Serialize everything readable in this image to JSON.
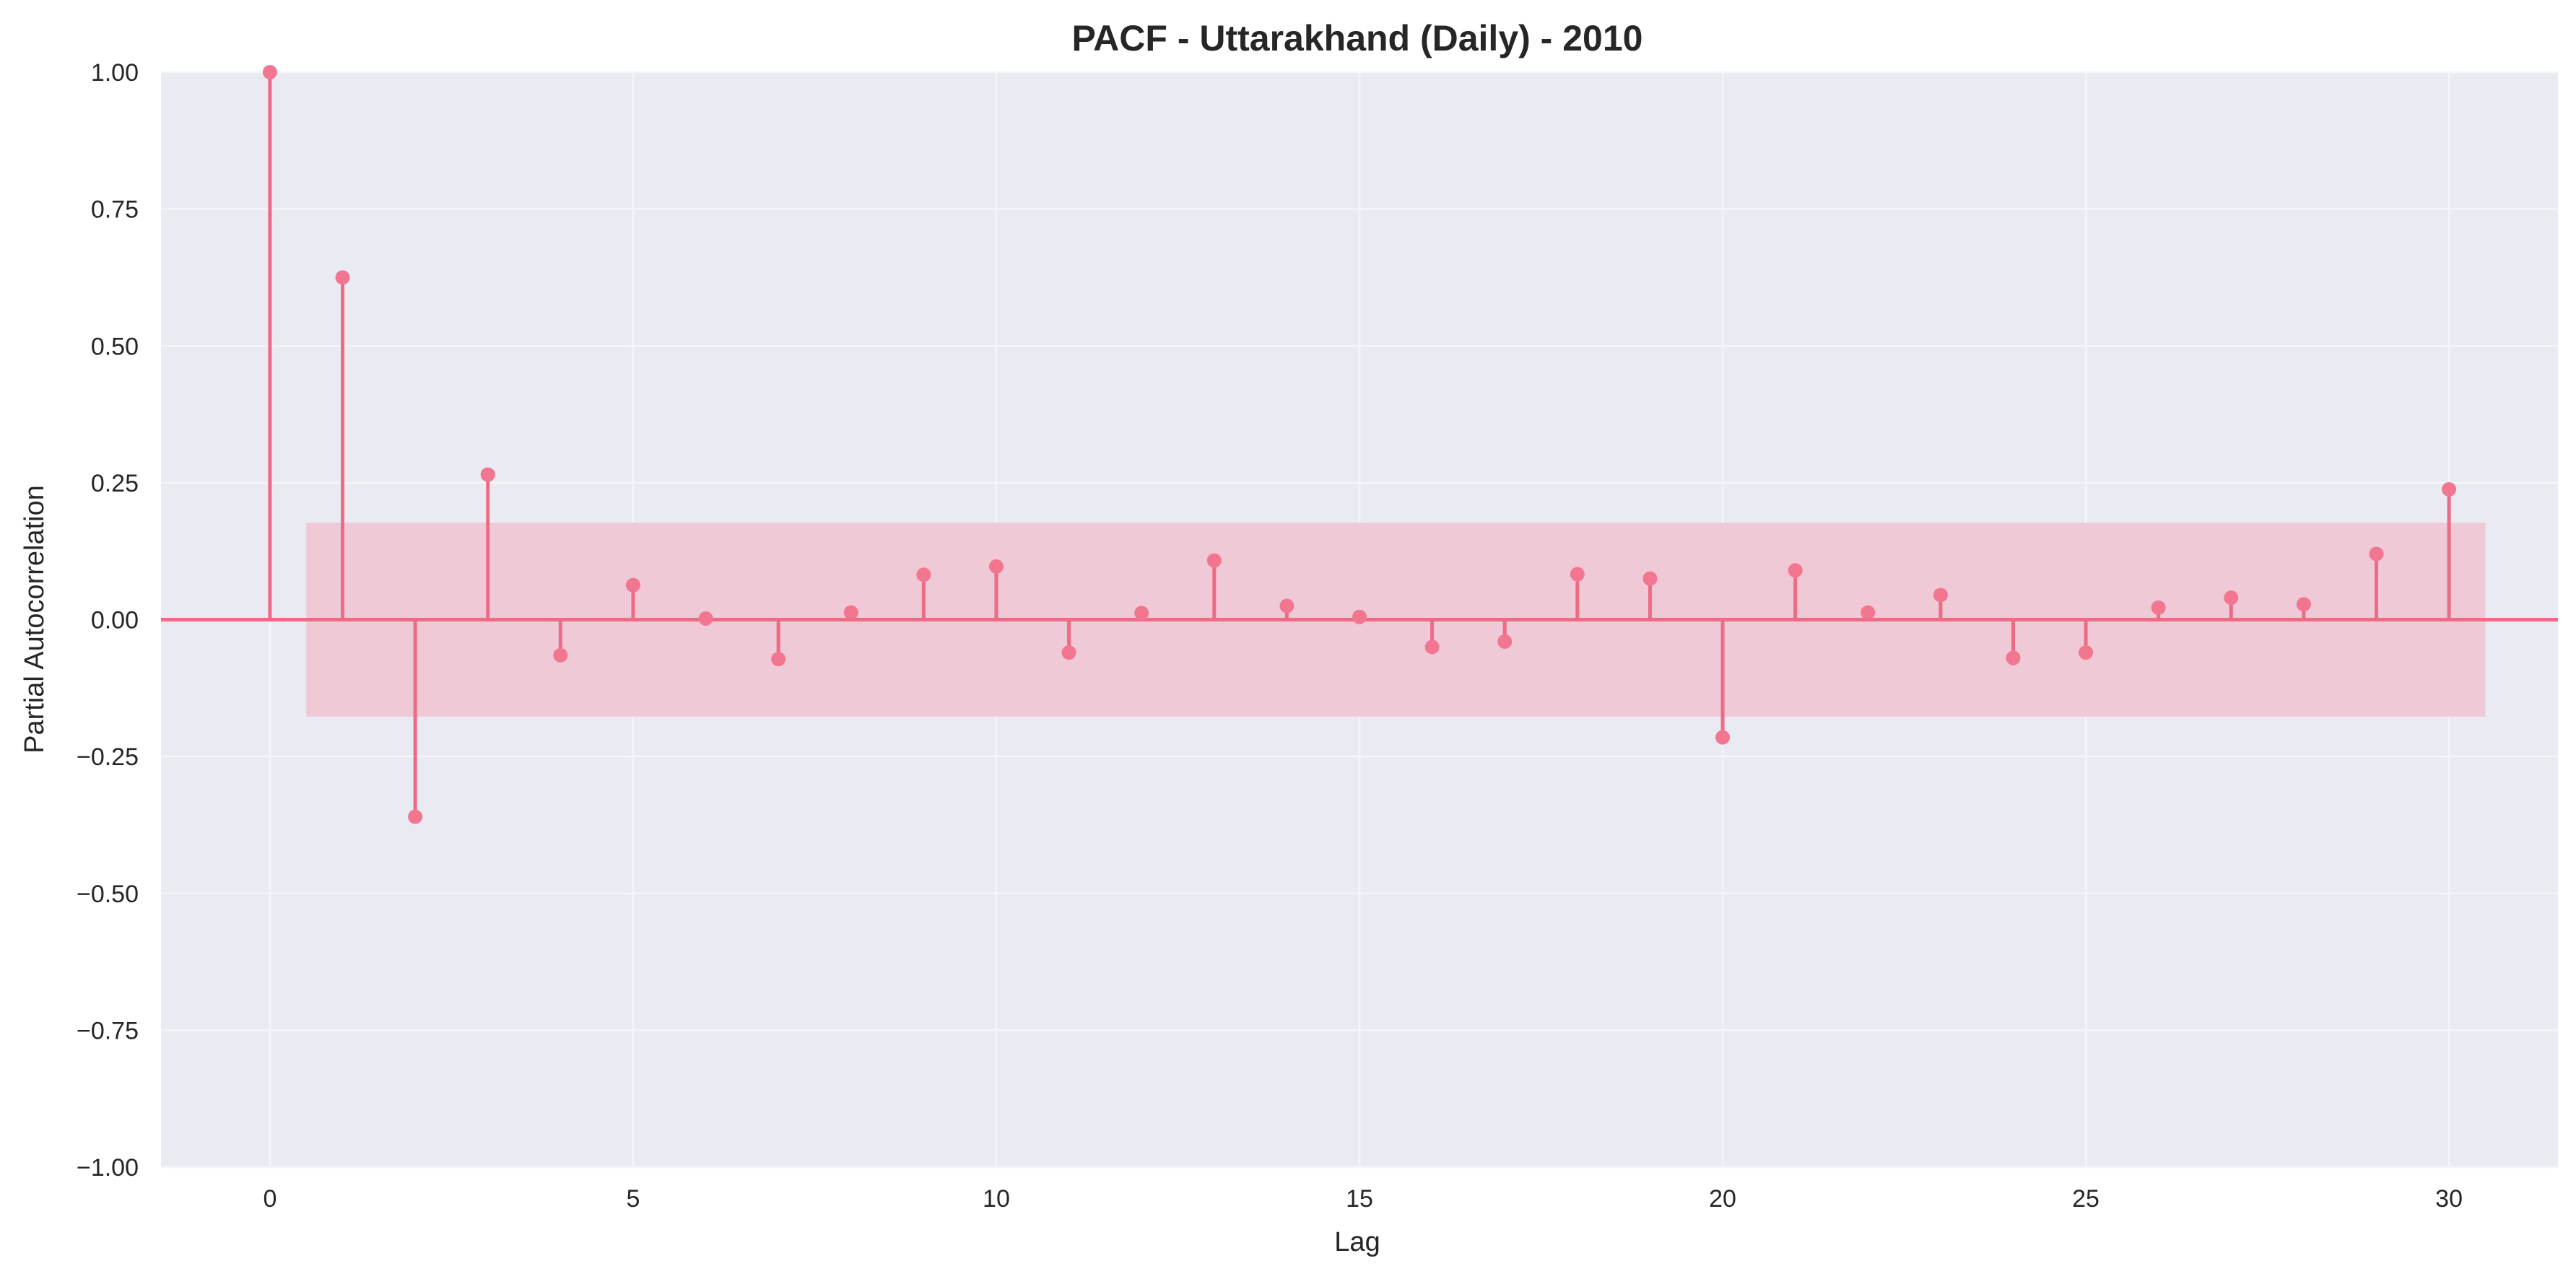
{
  "chart_data": {
    "type": "stem",
    "title": "PACF - Uttarakhand (Daily) - 2010",
    "xlabel": "Lag",
    "ylabel": "Partial Autocorrelation",
    "xlim": [
      -1.5,
      31.5
    ],
    "ylim": [
      -1.0,
      1.0
    ],
    "x_ticks": [
      0,
      5,
      10,
      15,
      20,
      25,
      30
    ],
    "y_ticks": [
      -1.0,
      -0.75,
      -0.5,
      -0.25,
      0.0,
      0.25,
      0.5,
      0.75,
      1.0
    ],
    "x_tick_labels": [
      "0",
      "5",
      "10",
      "15",
      "20",
      "25",
      "30"
    ],
    "y_tick_labels": [
      "−1.00",
      "−0.75",
      "−0.50",
      "−0.25",
      "0.00",
      "0.25",
      "0.50",
      "0.75",
      "1.00"
    ],
    "grid": true,
    "confidence_band": {
      "x_range": [
        0.5,
        30.5
      ],
      "lower": -0.177,
      "upper": 0.177
    },
    "series": [
      {
        "lags": [
          0,
          1,
          2,
          3,
          4,
          5,
          6,
          7,
          8,
          9,
          10,
          11,
          12,
          13,
          14,
          15,
          16,
          17,
          18,
          19,
          20,
          21,
          22,
          23,
          24,
          25,
          26,
          27,
          28,
          29,
          30
        ],
        "values": [
          1.0,
          0.625,
          -0.36,
          0.265,
          -0.065,
          0.063,
          0.002,
          -0.072,
          0.013,
          0.082,
          0.097,
          -0.06,
          0.012,
          0.108,
          0.025,
          0.005,
          -0.05,
          -0.04,
          0.083,
          0.075,
          -0.215,
          0.09,
          0.013,
          0.045,
          -0.07,
          -0.06,
          0.022,
          0.04,
          0.028,
          0.12,
          0.238
        ]
      }
    ],
    "colors": {
      "stem": "#ee6b86",
      "marker": "#f27690",
      "band": "#efc9d6",
      "plot_background": "#eaeaf2",
      "grid": "#f5f5f9"
    }
  }
}
